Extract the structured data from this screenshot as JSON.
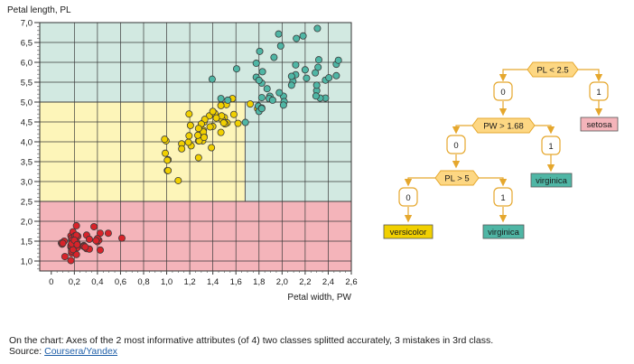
{
  "chart_data": {
    "type": "scatter",
    "title": "",
    "xlabel": "Petal width, PW",
    "ylabel": "Petal length, PL",
    "xlim": [
      -0.1,
      2.6
    ],
    "ylim": [
      0.75,
      7.0
    ],
    "x_ticks": [
      0,
      0.2,
      0.4,
      0.6,
      0.8,
      1.0,
      1.2,
      1.4,
      1.6,
      1.8,
      2.0,
      2.2,
      2.4,
      2.6
    ],
    "x_tick_labels": [
      "0",
      "0,2",
      "0,4",
      "0,6",
      "0,8",
      "1,0",
      "1,2",
      "1,4",
      "1,6",
      "1,8",
      "2,0",
      "2,2",
      "2,4",
      "2,6"
    ],
    "y_ticks": [
      1.0,
      1.5,
      2.0,
      2.5,
      3.0,
      3.5,
      4.0,
      4.5,
      5.0,
      5.5,
      6.0,
      6.5,
      7.0
    ],
    "y_tick_labels": [
      "1,0",
      "1,5",
      "2,0",
      "2,5",
      "3,0",
      "3,5",
      "4,0",
      "4,5",
      "5,0",
      "5,5",
      "6,0",
      "6,5",
      "7,0"
    ],
    "grid": true,
    "regions": [
      {
        "label": "setosa",
        "x0": -0.1,
        "x1": 2.6,
        "y0": 0.75,
        "y1": 2.5,
        "color": "#f4b4ba"
      },
      {
        "label": "versicolor",
        "x0": -0.1,
        "x1": 1.68,
        "y0": 2.5,
        "y1": 5.0,
        "color": "#fdf5b9"
      },
      {
        "label": "virginica",
        "x0": 1.68,
        "x1": 2.6,
        "y0": 2.5,
        "y1": 5.0,
        "color": "#d2e9e1"
      },
      {
        "label": "virginica",
        "x0": -0.1,
        "x1": 2.6,
        "y0": 5.0,
        "y1": 7.0,
        "color": "#d2e9e1"
      }
    ],
    "series": [
      {
        "name": "setosa",
        "color": "#d8232a",
        "points": [
          [
            0.2,
            1.4
          ],
          [
            0.2,
            1.4
          ],
          [
            0.2,
            1.3
          ],
          [
            0.2,
            1.5
          ],
          [
            0.2,
            1.4
          ],
          [
            0.4,
            1.7
          ],
          [
            0.3,
            1.4
          ],
          [
            0.2,
            1.5
          ],
          [
            0.2,
            1.4
          ],
          [
            0.1,
            1.5
          ],
          [
            0.2,
            1.5
          ],
          [
            0.2,
            1.6
          ],
          [
            0.1,
            1.4
          ],
          [
            0.1,
            1.1
          ],
          [
            0.2,
            1.2
          ],
          [
            0.4,
            1.5
          ],
          [
            0.4,
            1.3
          ],
          [
            0.3,
            1.4
          ],
          [
            0.3,
            1.7
          ],
          [
            0.3,
            1.5
          ],
          [
            0.2,
            1.7
          ],
          [
            0.4,
            1.5
          ],
          [
            0.2,
            1.0
          ],
          [
            0.5,
            1.7
          ],
          [
            0.2,
            1.9
          ],
          [
            0.2,
            1.6
          ],
          [
            0.4,
            1.6
          ],
          [
            0.2,
            1.5
          ],
          [
            0.2,
            1.4
          ],
          [
            0.2,
            1.6
          ],
          [
            0.2,
            1.6
          ],
          [
            0.4,
            1.5
          ],
          [
            0.1,
            1.5
          ],
          [
            0.2,
            1.4
          ],
          [
            0.2,
            1.5
          ],
          [
            0.2,
            1.2
          ],
          [
            0.2,
            1.3
          ],
          [
            0.1,
            1.4
          ],
          [
            0.2,
            1.3
          ],
          [
            0.2,
            1.5
          ],
          [
            0.3,
            1.3
          ],
          [
            0.3,
            1.3
          ],
          [
            0.2,
            1.3
          ],
          [
            0.6,
            1.6
          ],
          [
            0.4,
            1.9
          ],
          [
            0.3,
            1.4
          ],
          [
            0.2,
            1.6
          ],
          [
            0.2,
            1.4
          ],
          [
            0.2,
            1.5
          ],
          [
            0.2,
            1.4
          ]
        ]
      },
      {
        "name": "versicolor",
        "color": "#f1d000",
        "points": [
          [
            1.4,
            4.7
          ],
          [
            1.5,
            4.5
          ],
          [
            1.5,
            4.9
          ],
          [
            1.3,
            4.0
          ],
          [
            1.5,
            4.6
          ],
          [
            1.3,
            4.5
          ],
          [
            1.6,
            4.7
          ],
          [
            1.0,
            3.3
          ],
          [
            1.3,
            4.6
          ],
          [
            1.4,
            3.9
          ],
          [
            1.0,
            3.5
          ],
          [
            1.5,
            4.2
          ],
          [
            1.0,
            4.0
          ],
          [
            1.4,
            4.7
          ],
          [
            1.3,
            3.6
          ],
          [
            1.4,
            4.4
          ],
          [
            1.5,
            4.5
          ],
          [
            1.0,
            4.1
          ],
          [
            1.5,
            4.5
          ],
          [
            1.1,
            3.9
          ],
          [
            1.8,
            4.8
          ],
          [
            1.3,
            4.0
          ],
          [
            1.5,
            4.9
          ],
          [
            1.2,
            4.7
          ],
          [
            1.3,
            4.3
          ],
          [
            1.4,
            4.4
          ],
          [
            1.4,
            4.8
          ],
          [
            1.7,
            5.0
          ],
          [
            1.5,
            4.5
          ],
          [
            1.0,
            3.5
          ],
          [
            1.1,
            3.8
          ],
          [
            1.0,
            3.7
          ],
          [
            1.2,
            3.9
          ],
          [
            1.6,
            5.1
          ],
          [
            1.5,
            4.5
          ],
          [
            1.6,
            4.5
          ],
          [
            1.5,
            4.7
          ],
          [
            1.3,
            4.4
          ],
          [
            1.3,
            4.1
          ],
          [
            1.3,
            4.0
          ],
          [
            1.2,
            4.4
          ],
          [
            1.4,
            4.6
          ],
          [
            1.2,
            4.0
          ],
          [
            1.0,
            3.3
          ],
          [
            1.3,
            4.2
          ],
          [
            1.2,
            4.2
          ],
          [
            1.3,
            4.2
          ],
          [
            1.3,
            4.3
          ],
          [
            1.1,
            3.0
          ],
          [
            1.3,
            4.1
          ]
        ]
      },
      {
        "name": "virginica",
        "color": "#4fb6a5",
        "points": [
          [
            2.5,
            6.0
          ],
          [
            1.9,
            5.1
          ],
          [
            2.1,
            5.9
          ],
          [
            1.8,
            5.6
          ],
          [
            2.2,
            5.8
          ],
          [
            2.1,
            6.6
          ],
          [
            1.7,
            4.5
          ],
          [
            1.8,
            6.3
          ],
          [
            1.8,
            5.8
          ],
          [
            2.5,
            6.1
          ],
          [
            2.0,
            5.1
          ],
          [
            1.9,
            5.3
          ],
          [
            2.1,
            5.5
          ],
          [
            2.0,
            5.0
          ],
          [
            2.4,
            5.1
          ],
          [
            2.3,
            5.3
          ],
          [
            1.8,
            5.5
          ],
          [
            2.2,
            6.7
          ],
          [
            2.3,
            6.9
          ],
          [
            1.5,
            5.0
          ],
          [
            2.3,
            5.7
          ],
          [
            2.0,
            4.9
          ],
          [
            2.0,
            6.7
          ],
          [
            1.8,
            4.9
          ],
          [
            2.1,
            5.7
          ],
          [
            1.8,
            6.0
          ],
          [
            1.8,
            4.8
          ],
          [
            1.8,
            4.9
          ],
          [
            2.1,
            5.6
          ],
          [
            1.6,
            5.8
          ],
          [
            1.9,
            6.1
          ],
          [
            2.0,
            6.4
          ],
          [
            2.2,
            5.6
          ],
          [
            1.5,
            5.1
          ],
          [
            1.4,
            5.6
          ],
          [
            2.3,
            6.1
          ],
          [
            2.4,
            5.6
          ],
          [
            1.8,
            5.5
          ],
          [
            1.8,
            4.8
          ],
          [
            2.1,
            5.4
          ],
          [
            2.4,
            5.6
          ],
          [
            2.3,
            5.1
          ],
          [
            1.9,
            5.1
          ],
          [
            2.3,
            5.9
          ],
          [
            2.5,
            5.7
          ],
          [
            2.3,
            5.2
          ],
          [
            1.9,
            5.0
          ],
          [
            2.0,
            5.2
          ],
          [
            2.3,
            5.4
          ],
          [
            1.8,
            5.1
          ]
        ]
      }
    ]
  },
  "tree": {
    "root_condition": "PL < 2.5",
    "root_yes_value": "1",
    "root_no_value": "0",
    "leaf_setosa": "setosa",
    "pw_condition": "PW > 1.68",
    "pw_yes_value": "1",
    "pw_no_value": "0",
    "leaf_virginica_upper": "virginica",
    "pl_condition": "PL > 5",
    "pl_yes_value": "1",
    "pl_no_value": "0",
    "leaf_versicolor": "versicolor",
    "leaf_virginica_lower": "virginica"
  },
  "colors": {
    "node_fill": "#fdd783",
    "node_stroke": "#e5a72d",
    "arrow": "#e5a72d",
    "leaf_setosa_fill": "#f4b4ba",
    "leaf_versicolor_fill": "#f1d000",
    "leaf_virginica_fill": "#4fb6a5"
  },
  "caption": {
    "line1": "On the chart: Axes of the 2 most informative attributes (of 4) two classes splitted accurately, 3 mistakes in 3rd class.",
    "source_label": "Source:",
    "source_link": "Coursera/Yandex"
  }
}
